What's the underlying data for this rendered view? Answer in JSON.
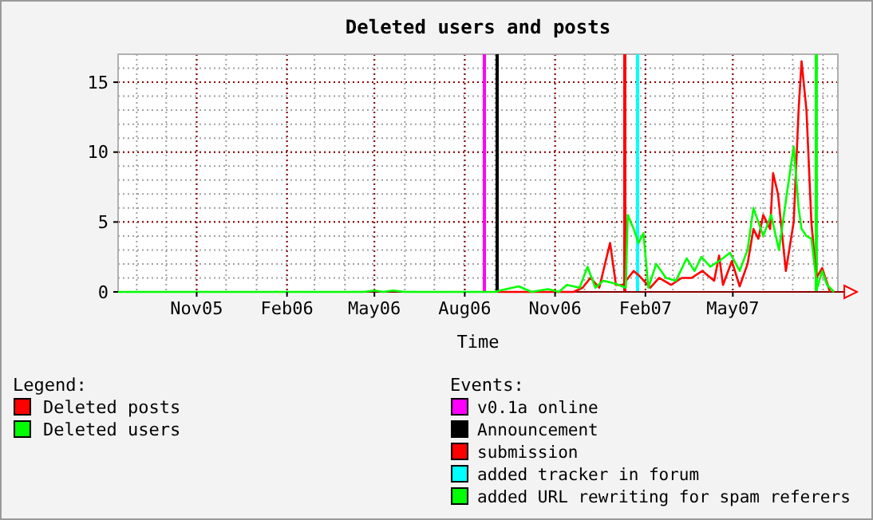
{
  "chart_data": {
    "type": "line",
    "title": "Deleted users and posts",
    "xlabel": "Time",
    "legend_title": "Legend:",
    "legend": "bottom left",
    "grid": true,
    "line_style": "solid",
    "xlim": [
      "2005-08-13",
      "2007-08-16"
    ],
    "ylim": [
      0,
      17
    ],
    "yticks": [
      0,
      5,
      10,
      15
    ],
    "xticks": [
      {
        "value": "2005-11-01",
        "label": "Nov05"
      },
      {
        "value": "2006-02-01",
        "label": "Feb06"
      },
      {
        "value": "2006-05-01",
        "label": "May06"
      },
      {
        "value": "2006-08-01",
        "label": "Aug06"
      },
      {
        "value": "2006-11-01",
        "label": "Nov06"
      },
      {
        "value": "2007-02-01",
        "label": "Feb07"
      },
      {
        "value": "2007-05-01",
        "label": "May07"
      }
    ],
    "annotations": [
      "Events:"
    ],
    "series": [
      {
        "name": "Deleted posts",
        "color": "#ff0000",
        "x": [
          "2006-09-04",
          "2006-11-20",
          "2006-11-29",
          "2006-12-07",
          "2006-12-16",
          "2006-12-27",
          "2007-01-02",
          "2007-01-09",
          "2007-01-20",
          "2007-01-25",
          "2007-02-06",
          "2007-02-15",
          "2007-02-27",
          "2007-03-10",
          "2007-03-20",
          "2007-03-31",
          "2007-04-12",
          "2007-04-17",
          "2007-04-21",
          "2007-04-30",
          "2007-05-08",
          "2007-05-16",
          "2007-05-22",
          "2007-05-27",
          "2007-06-01",
          "2007-06-08",
          "2007-06-11",
          "2007-06-16",
          "2007-06-24",
          "2007-07-02",
          "2007-07-07",
          "2007-07-10",
          "2007-07-15",
          "2007-07-20",
          "2007-07-25",
          "2007-07-31",
          "2007-08-08"
        ],
        "values": [
          0,
          0,
          0.3,
          1.0,
          0.3,
          3.5,
          0.5,
          0.5,
          1.5,
          1.2,
          0.3,
          1.0,
          0.5,
          1.0,
          1.0,
          1.5,
          0.8,
          2.6,
          0.5,
          2.2,
          0.4,
          2.0,
          4.5,
          3.8,
          5.5,
          4.5,
          8.5,
          7.0,
          1.5,
          5.0,
          13,
          16.5,
          13,
          5,
          1,
          1.7,
          0
        ]
      },
      {
        "name": "Deleted users",
        "color": "#00ff00",
        "x": [
          "2005-08-13",
          "2006-04-20",
          "2006-05-01",
          "2006-05-10",
          "2006-05-20",
          "2006-06-01",
          "2006-09-01",
          "2006-09-06",
          "2006-09-25",
          "2006-10-08",
          "2006-10-25",
          "2006-11-05",
          "2006-11-13",
          "2006-11-26",
          "2006-12-04",
          "2006-12-12",
          "2006-12-20",
          "2007-01-01",
          "2007-01-12",
          "2007-01-14",
          "2007-01-20",
          "2007-01-25",
          "2007-01-30",
          "2007-02-04",
          "2007-02-12",
          "2007-02-22",
          "2007-03-04",
          "2007-03-15",
          "2007-03-23",
          "2007-03-30",
          "2007-04-08",
          "2007-04-17",
          "2007-04-28",
          "2007-05-08",
          "2007-05-16",
          "2007-05-22",
          "2007-06-01",
          "2007-06-09",
          "2007-06-17",
          "2007-06-25",
          "2007-07-02",
          "2007-07-07",
          "2007-07-10",
          "2007-07-15",
          "2007-07-20",
          "2007-07-26",
          "2007-07-31",
          "2007-08-05",
          "2007-08-12"
        ],
        "values": [
          0,
          0,
          0.1,
          0,
          0.1,
          0,
          0,
          0.1,
          0.4,
          0,
          0.2,
          0,
          0.5,
          0.3,
          1.8,
          0.3,
          0.8,
          0.6,
          0.3,
          5.5,
          4.5,
          3.5,
          4.2,
          0.3,
          2.0,
          1.0,
          0.8,
          2.4,
          1.5,
          2.5,
          1.8,
          2.2,
          2.8,
          1.5,
          3.0,
          6.0,
          4.0,
          5.5,
          3.0,
          7.0,
          10.4,
          6.0,
          4.5,
          4.0,
          3.8,
          0.3,
          1.5,
          0.5,
          0
        ]
      }
    ],
    "ref_lines": [
      {
        "axis": "x",
        "value": "2006-08-21",
        "label": "v0.1a online",
        "color": "#ff00ff"
      },
      {
        "axis": "x",
        "value": "2006-09-03",
        "label": "Announcement",
        "color": "#000000"
      },
      {
        "axis": "x",
        "value": "2007-01-11",
        "label": "submission",
        "color": "#ff0000"
      },
      {
        "axis": "x",
        "value": "2007-01-24",
        "label": "added tracker in forum",
        "color": "#00ffff"
      },
      {
        "axis": "x",
        "value": "2007-07-25",
        "label": "added URL rewriting for spam referers",
        "color": "#00ff00"
      }
    ]
  }
}
